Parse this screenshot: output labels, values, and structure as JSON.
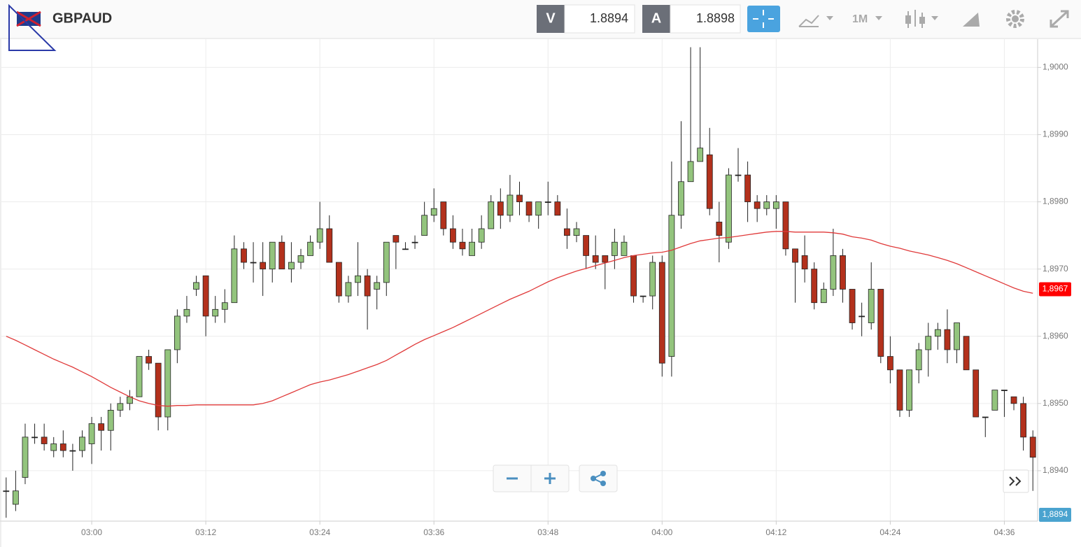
{
  "toolbar": {
    "symbol": "GBPAUD",
    "bid_label": "V",
    "bid": "1.8894",
    "ask_label": "A",
    "ask": "1.8898",
    "timeframe": "1M"
  },
  "chart_data": {
    "type": "candlestick",
    "categories": [
      null,
      null,
      null,
      null,
      null,
      null,
      null,
      null,
      null,
      "03:00",
      null,
      null,
      null,
      null,
      null,
      null,
      null,
      null,
      null,
      null,
      null,
      "03:12",
      null,
      null,
      null,
      null,
      null,
      null,
      null,
      null,
      null,
      null,
      null,
      "03:24",
      null,
      null,
      null,
      null,
      null,
      null,
      null,
      null,
      null,
      null,
      null,
      "03:36",
      null,
      null,
      null,
      null,
      null,
      null,
      null,
      null,
      null,
      null,
      null,
      "03:48",
      null,
      null,
      null,
      null,
      null,
      null,
      null,
      null,
      null,
      null,
      null,
      "04:00",
      null,
      null,
      null,
      null,
      null,
      null,
      null,
      null,
      null,
      null,
      null,
      "04:12",
      null,
      null,
      null,
      null,
      null,
      null,
      null,
      null,
      null,
      null,
      null,
      "04:24",
      null,
      null,
      null,
      null,
      null,
      null,
      null,
      null,
      null,
      null,
      null,
      "04:36",
      null,
      null,
      null
    ],
    "open": [
      1.8937,
      1.8935,
      1.8939,
      1.8945,
      1.8945,
      1.8943,
      1.8944,
      1.8943,
      1.8943,
      1.8944,
      1.8947,
      1.8946,
      1.8949,
      1.895,
      1.8951,
      1.8957,
      1.8956,
      1.8948,
      1.8958,
      1.8963,
      1.8967,
      1.8969,
      1.8963,
      1.8964,
      1.8965,
      1.8973,
      1.8971,
      1.8971,
      1.897,
      1.8974,
      1.897,
      1.8971,
      1.8972,
      1.8974,
      1.8976,
      1.8971,
      1.8966,
      1.8968,
      1.8969,
      1.8967,
      1.8968,
      1.8975,
      1.8973,
      1.8974,
      1.8975,
      1.8978,
      1.898,
      1.8976,
      1.8974,
      1.8972,
      1.8974,
      1.8976,
      1.898,
      1.8978,
      1.8981,
      1.898,
      1.8978,
      1.898,
      1.898,
      1.8976,
      1.8975,
      1.8975,
      1.8972,
      1.8972,
      1.8972,
      1.8972,
      1.8972,
      1.8966,
      1.8966,
      1.8971,
      1.8957,
      1.8978,
      1.8983,
      1.8986,
      1.8987,
      1.8977,
      1.8974,
      1.8984,
      1.8984,
      1.898,
      1.8979,
      1.8979,
      1.898,
      1.8973,
      1.8972,
      1.897,
      1.8965,
      1.8967,
      1.8972,
      1.8967,
      1.8963,
      1.8962,
      1.8967,
      1.8957,
      1.8955,
      1.8949,
      1.8955,
      1.8958,
      1.896,
      1.8961,
      1.8958,
      1.896,
      1.8955,
      1.8948,
      1.8949,
      1.8952,
      1.8951,
      1.895,
      1.8945
    ],
    "high": [
      1.8939,
      1.894,
      1.8947,
      1.8947,
      1.8947,
      1.8945,
      1.8946,
      1.8944,
      1.8946,
      1.8948,
      1.8948,
      1.895,
      1.8951,
      1.8952,
      1.8957,
      1.8958,
      1.8956,
      1.8958,
      1.8964,
      1.8966,
      1.8969,
      1.8969,
      1.8966,
      1.8967,
      1.8975,
      1.8974,
      1.8974,
      1.8974,
      1.8974,
      1.8975,
      1.8974,
      1.8973,
      1.8975,
      1.898,
      1.8978,
      1.8971,
      1.8969,
      1.8974,
      1.897,
      1.8969,
      1.8974,
      1.8975,
      1.8974,
      1.8975,
      1.898,
      1.8982,
      1.898,
      1.8978,
      1.8976,
      1.8976,
      1.8978,
      1.8981,
      1.8982,
      1.8984,
      1.8983,
      1.898,
      1.898,
      1.8983,
      1.8981,
      1.8979,
      1.8977,
      1.8975,
      1.8975,
      1.8972,
      1.8976,
      1.8975,
      1.8972,
      1.8966,
      1.8972,
      1.8972,
      1.8986,
      1.8992,
      1.9003,
      1.9003,
      1.8991,
      1.898,
      1.8985,
      1.8988,
      1.8986,
      1.8981,
      1.8981,
      1.8981,
      1.898,
      1.8973,
      1.8975,
      1.8971,
      1.8968,
      1.8976,
      1.8973,
      1.8967,
      1.8965,
      1.8971,
      1.8967,
      1.896,
      1.8955,
      1.8955,
      1.8959,
      1.8962,
      1.8962,
      1.8964,
      1.8962,
      1.896,
      1.8955,
      1.8948,
      1.8952,
      1.8952,
      1.8951,
      1.8951,
      1.8946
    ],
    "low": [
      1.8933,
      1.8934,
      1.8938,
      1.8944,
      1.8943,
      1.8942,
      1.8942,
      1.894,
      1.8942,
      1.8941,
      1.8943,
      1.8943,
      1.8948,
      1.8949,
      1.8951,
      1.8955,
      1.8946,
      1.8946,
      1.8956,
      1.8962,
      1.8966,
      1.896,
      1.8962,
      1.8962,
      1.8965,
      1.897,
      1.8968,
      1.8966,
      1.8968,
      1.897,
      1.8968,
      1.897,
      1.8972,
      1.8973,
      1.8971,
      1.8965,
      1.8965,
      1.8966,
      1.8961,
      1.8964,
      1.8966,
      1.897,
      1.8973,
      1.8973,
      1.8975,
      1.8977,
      1.8975,
      1.8973,
      1.8972,
      1.8972,
      1.8973,
      1.8976,
      1.8976,
      1.8977,
      1.8978,
      1.8977,
      1.8976,
      1.8978,
      1.8978,
      1.8973,
      1.8974,
      1.897,
      1.897,
      1.8967,
      1.897,
      1.8972,
      1.8965,
      1.8965,
      1.8964,
      1.8954,
      1.8954,
      1.8976,
      1.8983,
      1.8986,
      1.8978,
      1.8971,
      1.8973,
      1.8983,
      1.8977,
      1.8977,
      1.8978,
      1.8976,
      1.8972,
      1.8965,
      1.8968,
      1.8964,
      1.8965,
      1.8966,
      1.8965,
      1.8961,
      1.896,
      1.8961,
      1.8956,
      1.8953,
      1.8948,
      1.8948,
      1.8953,
      1.8954,
      1.8958,
      1.8956,
      1.8956,
      1.8955,
      1.8948,
      1.8945,
      1.8949,
      1.8948,
      1.8949,
      1.8943,
      1.8937
    ],
    "close": [
      1.8937,
      1.8937,
      1.8945,
      1.8945,
      1.8944,
      1.8944,
      1.8943,
      1.8943,
      1.8945,
      1.8947,
      1.8946,
      1.8949,
      1.895,
      1.8951,
      1.8957,
      1.8956,
      1.8948,
      1.8958,
      1.8963,
      1.8964,
      1.8968,
      1.8963,
      1.8964,
      1.8965,
      1.8973,
      1.8971,
      1.8971,
      1.897,
      1.8974,
      1.897,
      1.8971,
      1.8972,
      1.8974,
      1.8976,
      1.8971,
      1.8966,
      1.8968,
      1.8969,
      1.8966,
      1.8968,
      1.8974,
      1.8974,
      1.8973,
      1.8974,
      1.8978,
      1.8979,
      1.8976,
      1.8974,
      1.8973,
      1.8974,
      1.8976,
      1.898,
      1.8978,
      1.8981,
      1.898,
      1.8978,
      1.898,
      1.898,
      1.8978,
      1.8975,
      1.8976,
      1.8972,
      1.8971,
      1.8971,
      1.8974,
      1.8974,
      1.8966,
      1.8966,
      1.8971,
      1.8956,
      1.8978,
      1.8983,
      1.8986,
      1.8988,
      1.8979,
      1.8975,
      1.8984,
      1.8984,
      1.898,
      1.8979,
      1.898,
      1.898,
      1.8973,
      1.8971,
      1.897,
      1.8965,
      1.8967,
      1.8972,
      1.8967,
      1.8962,
      1.8963,
      1.8967,
      1.8957,
      1.8955,
      1.8949,
      1.8955,
      1.8958,
      1.896,
      1.8961,
      1.8958,
      1.8962,
      1.8955,
      1.8948,
      1.8948,
      1.8952,
      1.8952,
      1.895,
      1.8945,
      1.8942
    ],
    "up_color": "#93c47d",
    "down_color": "#b3311c",
    "line": {
      "color": "#e03a3a",
      "values": [
        1.896,
        1.89594,
        1.89587,
        1.8958,
        1.89573,
        1.89566,
        1.8956,
        1.89554,
        1.89547,
        1.8954,
        1.89532,
        1.89524,
        1.89517,
        1.8951,
        1.89504,
        1.895,
        1.89497,
        1.89496,
        1.89497,
        1.89497,
        1.89498,
        1.89498,
        1.89498,
        1.89498,
        1.89498,
        1.89498,
        1.89498,
        1.895,
        1.89504,
        1.8951,
        1.89516,
        1.89522,
        1.89528,
        1.89532,
        1.89535,
        1.89539,
        1.89543,
        1.89548,
        1.89553,
        1.89558,
        1.89564,
        1.89572,
        1.8958,
        1.89588,
        1.89595,
        1.89601,
        1.89607,
        1.89613,
        1.8962,
        1.89627,
        1.89634,
        1.89641,
        1.89648,
        1.89655,
        1.89661,
        1.89667,
        1.89674,
        1.89681,
        1.89687,
        1.89692,
        1.89697,
        1.89701,
        1.89705,
        1.89709,
        1.89713,
        1.89717,
        1.8972,
        1.89722,
        1.89724,
        1.89725,
        1.89728,
        1.89733,
        1.89738,
        1.89742,
        1.89744,
        1.89746,
        1.89747,
        1.89749,
        1.89751,
        1.89753,
        1.89755,
        1.89756,
        1.89756,
        1.89755,
        1.89755,
        1.89755,
        1.89755,
        1.89754,
        1.89752,
        1.89748,
        1.89746,
        1.89743,
        1.89738,
        1.89734,
        1.89731,
        1.89727,
        1.89724,
        1.89721,
        1.89717,
        1.89713,
        1.89708,
        1.89702,
        1.89696,
        1.8969,
        1.89684,
        1.89678,
        1.89672,
        1.89667,
        1.89664
      ]
    },
    "ylim": [
      1.89325,
      1.90042
    ],
    "yticks": [
      {
        "value": 1.894,
        "label": "1,8940"
      },
      {
        "value": 1.895,
        "label": "1,8950"
      },
      {
        "value": 1.896,
        "label": "1,8960"
      },
      {
        "value": 1.897,
        "label": "1,8970"
      },
      {
        "value": 1.898,
        "label": "1,8980"
      },
      {
        "value": 1.899,
        "label": "1,8990"
      },
      {
        "value": 1.9,
        "label": "1,9000"
      }
    ],
    "grid": true,
    "last_tag": {
      "value": 1.8967,
      "label": "1,8967",
      "color": "#ff0000"
    },
    "bid_tag": {
      "label": "1,8894",
      "color": "#4aa3cf"
    }
  }
}
